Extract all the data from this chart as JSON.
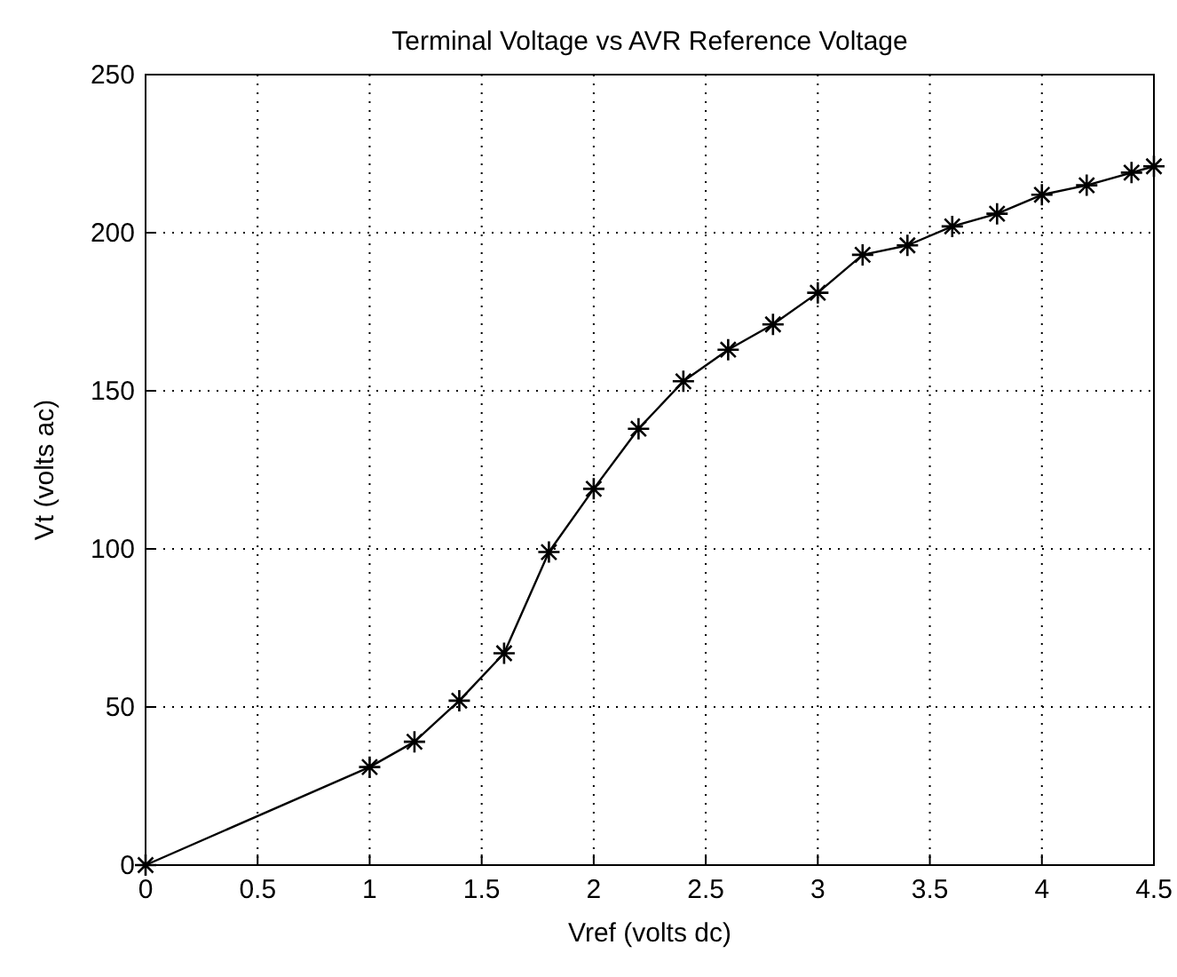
{
  "chart_data": {
    "type": "line",
    "title": "Terminal Voltage vs AVR Reference Voltage",
    "xlabel": "Vref (volts dc)",
    "ylabel": "Vt (volts ac)",
    "x": [
      0,
      1,
      1.2,
      1.4,
      1.6,
      1.8,
      2,
      2.2,
      2.4,
      2.6,
      2.8,
      3,
      3.2,
      3.4,
      3.6,
      3.8,
      4,
      4.2,
      4.4,
      4.5
    ],
    "series": [
      {
        "color": "#000000",
        "values": [
          0,
          31,
          39,
          52,
          67,
          99,
          119,
          138,
          153,
          163,
          171,
          181,
          193,
          196,
          202,
          206,
          212,
          215,
          219,
          221
        ]
      }
    ],
    "xlim": [
      0,
      4.5
    ],
    "xticks": [
      0,
      0.5,
      1,
      1.5,
      2,
      2.5,
      3,
      3.5,
      4,
      4.5
    ],
    "ylim": [
      0,
      250
    ],
    "yticks": [
      0,
      50,
      100,
      150,
      200,
      250
    ],
    "grid": true,
    "marker": "cross",
    "line_style": "solid"
  }
}
